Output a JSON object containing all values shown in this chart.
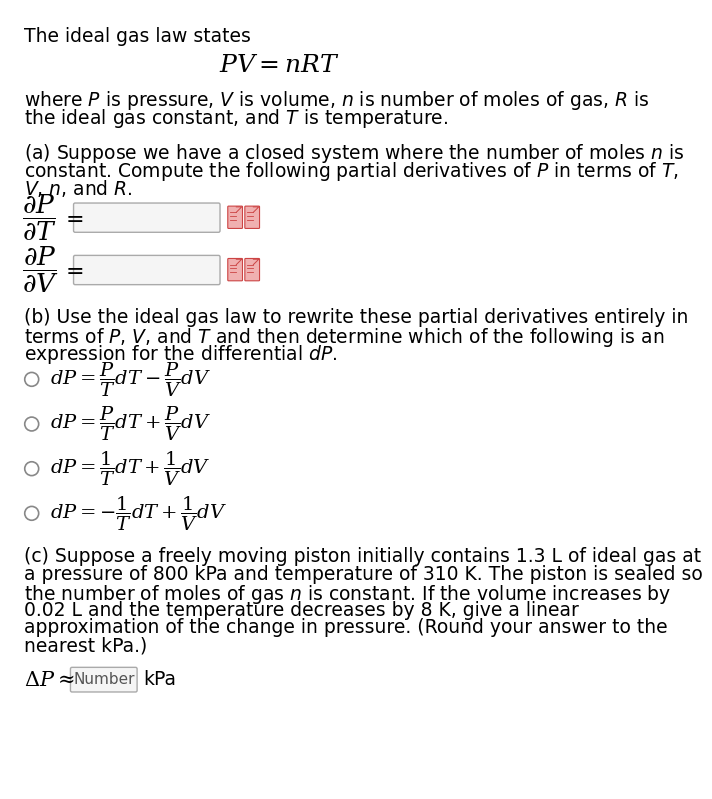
{
  "bg_color": "#ffffff",
  "text_color": "#000000",
  "fs": 13.5,
  "fs_math": 14,
  "title_line": "The ideal gas law states",
  "where_line1": "where $P$ is pressure, $V$ is volume, $n$ is number of moles of gas, $R$ is",
  "where_line2": "the ideal gas constant, and $T$ is temperature.",
  "part_a_line1": "(a) Suppose we have a closed system where the number of moles $n$ is",
  "part_a_line2": "constant. Compute the following partial derivatives of $P$ in terms of $T$,",
  "part_a_line3": "$V$, $n$, and $R$.",
  "part_b_line1": "(b) Use the ideal gas law to rewrite these partial derivatives entirely in",
  "part_b_line2": "terms of $P$, $V$, and $T$ and then determine which of the following is an",
  "part_b_line3": "expression for the differential $dP$.",
  "part_c_line1": "(c) Suppose a freely moving piston initially contains 1.3 L of ideal gas at",
  "part_c_line2": "a pressure of 800 kPa and temperature of 310 K. The piston is sealed so",
  "part_c_line3": "the number of moles of gas $n$ is constant. If the volume increases by",
  "part_c_line4": "0.02 L and the temperature decreases by 8 K, give a linear",
  "part_c_line5": "approximation of the change in pressure. (Round your answer to the",
  "part_c_line6": "nearest kPa.)",
  "option1": "$dP = \\dfrac{P}{T}dT - \\dfrac{P}{V}dV$",
  "option2": "$dP = \\dfrac{P}{T}dT + \\dfrac{P}{V}dV$",
  "option3": "$dP = \\dfrac{1}{T}dT + \\dfrac{1}{V}dV$",
  "option4": "$dP = -\\dfrac{1}{T}dT + \\dfrac{1}{V}dV$",
  "icon_face": "#f0b0b0",
  "icon_edge": "#cc4444",
  "box_face": "#f5f5f5",
  "box_edge": "#aaaaaa",
  "radio_edge": "#888888",
  "number_label_color": "#555555"
}
